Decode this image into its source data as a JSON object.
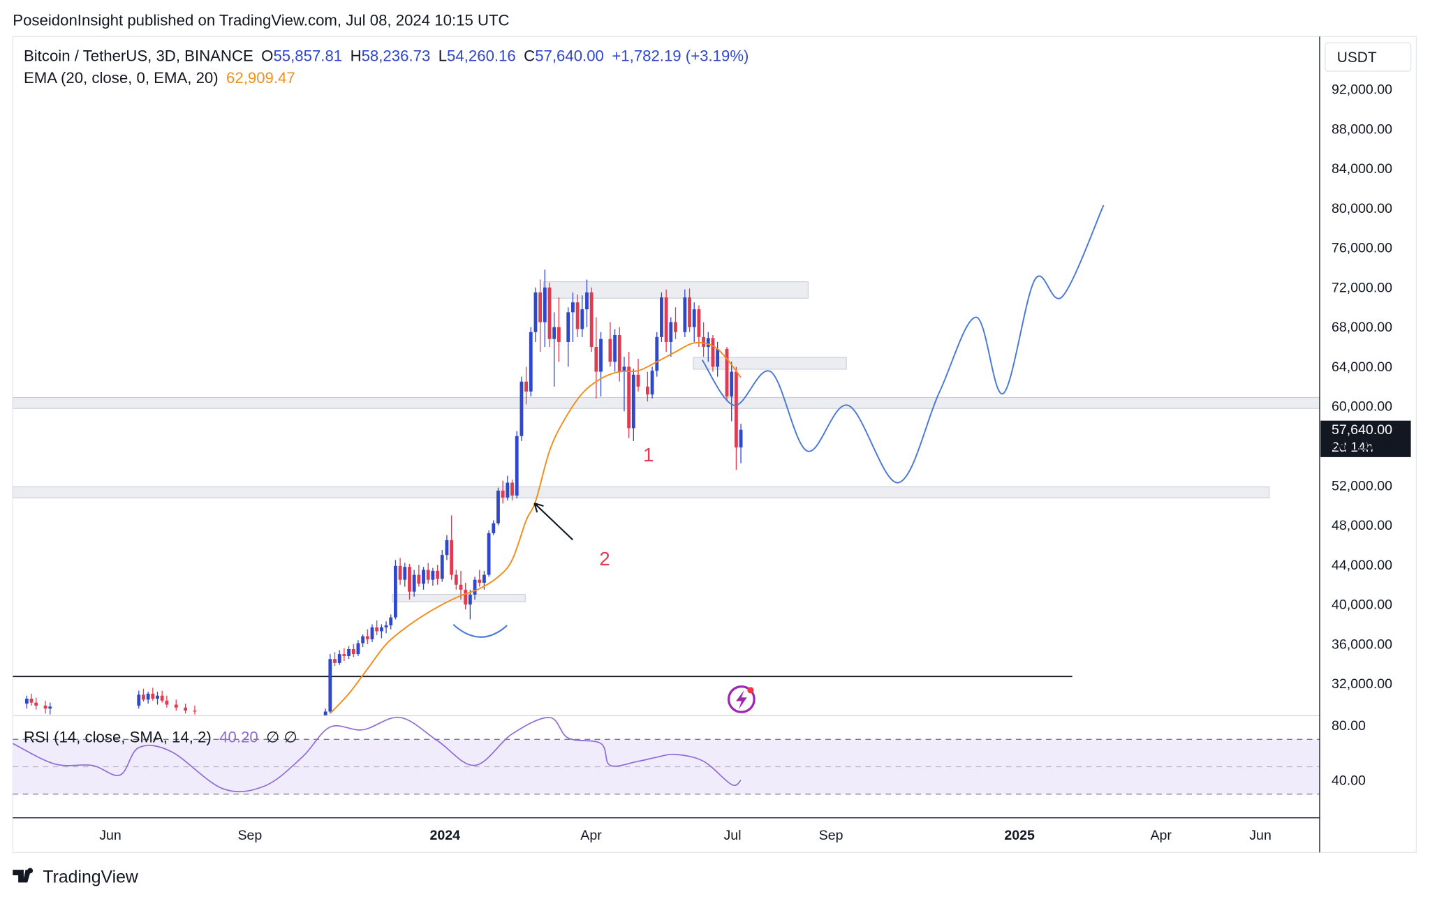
{
  "header": "PoseidonInsight published on TradingView.com, Jul 08, 2024 10:15 UTC",
  "footer": "TradingView",
  "chart_data": {
    "type": "candlestick",
    "currency": "USDT",
    "legend": {
      "symbol": "Bitcoin / TetherUS, 3D, BINANCE",
      "ohlc": [
        {
          "key": "O",
          "label": "55,857.81"
        },
        {
          "key": "H",
          "label": "58,236.73"
        },
        {
          "key": "L",
          "label": "54,260.16"
        },
        {
          "key": "C",
          "label": "57,640.00"
        }
      ],
      "change": "+1,782.19 (+3.19%)"
    },
    "ema_legend": {
      "name": "EMA (20, close, 0, EMA, 20)",
      "value": "62,909.47"
    },
    "last_price_label": "57,640.00",
    "countdown": "2d 14h",
    "up_color": "#2f47c9",
    "down_color": "#e23a50",
    "xlim": [
      0,
      280
    ],
    "xticks": [
      {
        "value": 20.9,
        "label": "Jun"
      },
      {
        "value": 50.8,
        "label": "Sep"
      },
      {
        "value": 92.6,
        "label": "2024"
      },
      {
        "value": 123.9,
        "label": "Apr"
      },
      {
        "value": 154.2,
        "label": "Jul"
      },
      {
        "value": 175.3,
        "label": "Sep"
      },
      {
        "value": 215.7,
        "label": "2025"
      },
      {
        "value": 246,
        "label": "Apr"
      },
      {
        "value": 267.3,
        "label": "Jun"
      }
    ],
    "ylim": [
      28780,
      97330
    ],
    "yticks": [
      {
        "value": 32000,
        "label": "32,000.00"
      },
      {
        "value": 36000,
        "label": "36,000.00"
      },
      {
        "value": 40000,
        "label": "40,000.00"
      },
      {
        "value": 44000,
        "label": "44,000.00"
      },
      {
        "value": 48000,
        "label": "48,000.00"
      },
      {
        "value": 52000,
        "label": "52,000.00"
      },
      {
        "value": 56000,
        "label": "56,000.00"
      },
      {
        "value": 60000,
        "label": "60,000.00"
      },
      {
        "value": 64000,
        "label": "64,000.00"
      },
      {
        "value": 68000,
        "label": "68,000.00"
      },
      {
        "value": 72000,
        "label": "72,000.00"
      },
      {
        "value": 76000,
        "label": "76,000.00"
      },
      {
        "value": 80000,
        "label": "80,000.00"
      },
      {
        "value": 84000,
        "label": "84,000.00"
      },
      {
        "value": 88000,
        "label": "88,000.00"
      },
      {
        "value": 92000,
        "label": "92,000.00"
      }
    ],
    "x": [
      3,
      4,
      5,
      7,
      8,
      27,
      28,
      29,
      30,
      31,
      32,
      33,
      35,
      37,
      39,
      67,
      68,
      69,
      70,
      71,
      72,
      73,
      74,
      75,
      76,
      77,
      78,
      79,
      80,
      81,
      82,
      83,
      84,
      85,
      86,
      87,
      88,
      89,
      90,
      91,
      92,
      93,
      94,
      95,
      96,
      97,
      98,
      99,
      100,
      101,
      102,
      103,
      104,
      105,
      106,
      107,
      108,
      109,
      110,
      111,
      112,
      113,
      114,
      115,
      116,
      117,
      119,
      120,
      121,
      122,
      123,
      124,
      125,
      126,
      128,
      129,
      130,
      131,
      132,
      133,
      134,
      136,
      137,
      138,
      139,
      140,
      141,
      142,
      144,
      145,
      146,
      147,
      148,
      149,
      150,
      151,
      153,
      154,
      155,
      156
    ],
    "open": [
      30000,
      30500,
      30100,
      29800,
      29500,
      29800,
      30900,
      30400,
      31000,
      30500,
      30800,
      30300,
      29900,
      29600,
      29300,
      28000,
      29200,
      34500,
      34100,
      35000,
      34800,
      35500,
      35000,
      36100,
      36800,
      36500,
      37700,
      37300,
      37700,
      37900,
      38700,
      43900,
      42500,
      43800,
      41300,
      43000,
      42100,
      43500,
      42500,
      43400,
      42600,
      45000,
      46500,
      43000,
      42000,
      41500,
      40000,
      41000,
      42500,
      42200,
      43000,
      47200,
      48200,
      51500,
      50800,
      52300,
      51000,
      57000,
      62500,
      61500,
      67500,
      71500,
      68500,
      72000,
      66800,
      68000,
      66500,
      69500,
      70500,
      67800,
      69800,
      71500,
      66000,
      63500,
      66800,
      64500,
      67200,
      63500,
      64000,
      57800,
      63200,
      62000,
      61200,
      63600,
      67000,
      71000,
      66500,
      68500,
      67500,
      71000,
      68000,
      69800,
      67000,
      66000,
      66900,
      64000,
      65800,
      61000,
      63500,
      55857.81
    ],
    "high": [
      30800,
      31000,
      30600,
      30300,
      30100,
      31300,
      31500,
      31200,
      31600,
      31200,
      31300,
      30800,
      30400,
      30000,
      29800,
      29500,
      35000,
      35200,
      35400,
      35600,
      35800,
      36000,
      36400,
      37000,
      37500,
      38000,
      38400,
      38000,
      38300,
      39000,
      44500,
      44700,
      44200,
      44100,
      43500,
      44000,
      43800,
      44200,
      43700,
      44000,
      45500,
      47000,
      49000,
      43500,
      43400,
      42200,
      41500,
      42800,
      43500,
      43400,
      47500,
      48500,
      51800,
      52500,
      53000,
      52600,
      57500,
      63000,
      64000,
      68000,
      72000,
      72800,
      73800,
      72500,
      69500,
      71000,
      70000,
      71500,
      71300,
      71200,
      72800,
      72000,
      69000,
      67500,
      68500,
      67800,
      68000,
      65000,
      65500,
      63800,
      64800,
      63500,
      64000,
      67500,
      71500,
      71800,
      69000,
      70000,
      71800,
      71900,
      70500,
      70200,
      68500,
      67500,
      67200,
      66500,
      66000,
      64500,
      64000,
      58236.73
    ],
    "low": [
      29500,
      29800,
      29400,
      29000,
      28900,
      29500,
      30200,
      30000,
      30300,
      29900,
      30100,
      29600,
      29300,
      29000,
      28900,
      27800,
      29000,
      33800,
      33900,
      34300,
      34500,
      34700,
      34800,
      35700,
      36000,
      36200,
      36900,
      36600,
      37100,
      37500,
      38500,
      42000,
      41800,
      40500,
      40800,
      41800,
      41500,
      42100,
      41900,
      42000,
      42300,
      44500,
      42500,
      41500,
      40500,
      39500,
      38500,
      40500,
      41800,
      41500,
      42800,
      47000,
      48000,
      50200,
      50500,
      50500,
      50700,
      56500,
      60200,
      61000,
      66500,
      65500,
      66000,
      66000,
      62000,
      64500,
      64000,
      66500,
      67000,
      67000,
      68000,
      65500,
      60800,
      61000,
      64000,
      63500,
      62500,
      59500,
      56800,
      56500,
      61500,
      60500,
      60800,
      63000,
      66500,
      65500,
      65000,
      66800,
      67000,
      67500,
      66500,
      66000,
      65000,
      64500,
      63500,
      63000,
      60500,
      58500,
      53600,
      54260.16
    ],
    "close": [
      30500,
      30100,
      29800,
      29500,
      29700,
      30900,
      30400,
      31000,
      30500,
      30800,
      30300,
      29900,
      29600,
      29300,
      29200,
      29200,
      34500,
      34100,
      35000,
      34800,
      35500,
      35000,
      36100,
      36800,
      36500,
      37700,
      37300,
      37700,
      37900,
      38700,
      43900,
      42500,
      43800,
      41300,
      43000,
      42100,
      43500,
      42500,
      43400,
      42600,
      45000,
      46500,
      43000,
      42000,
      41500,
      40000,
      41000,
      42500,
      42200,
      43000,
      47200,
      48200,
      51500,
      50800,
      52300,
      51000,
      57000,
      62500,
      61500,
      67500,
      71500,
      68500,
      72000,
      66800,
      68000,
      66500,
      69500,
      70500,
      67800,
      69800,
      71500,
      66000,
      63500,
      66800,
      64500,
      67200,
      63500,
      64000,
      57800,
      63200,
      62000,
      61200,
      63600,
      67000,
      71000,
      66500,
      68500,
      67500,
      71000,
      68000,
      69800,
      67000,
      66000,
      66900,
      64000,
      65800,
      61000,
      63500,
      55857.81,
      57640
    ],
    "series": [
      {
        "name": "EMA (20, close, 0, EMA, 20)",
        "color": "#ef8f1e",
        "x": [
          68,
          72,
          76,
          80,
          84,
          88,
          92,
          96,
          100,
          104,
          107,
          110,
          112,
          115,
          118,
          122,
          126,
          130,
          134,
          138,
          142,
          146,
          150,
          153,
          156
        ],
        "values": [
          29000,
          31000,
          33500,
          36000,
          37600,
          38900,
          40000,
          40900,
          41600,
          42800,
          44500,
          48500,
          50400,
          55500,
          58500,
          61300,
          62800,
          63500,
          63600,
          64500,
          65500,
          66400,
          66100,
          64800,
          62909.47
        ]
      },
      {
        "name": "projection",
        "color": "#4a78d6",
        "x": [
          147.7,
          154.6,
          162.4,
          170.2,
          179,
          189.7,
          198.5,
          206.4,
          212.2,
          219,
          224.9,
          233.7
        ],
        "values": [
          64700,
          60100,
          63500,
          55500,
          60100,
          52300,
          61400,
          69000,
          61300,
          72800,
          71100,
          80300
        ]
      }
    ],
    "zones": [
      {
        "x": [
          113.7,
          170.4
        ],
        "y": [
          70920,
          72580
        ]
      },
      {
        "x": [
          145.8,
          178.6
        ],
        "y": [
          63750,
          64940
        ]
      },
      {
        "x": [
          0,
          280
        ],
        "y": [
          59790,
          60900
        ]
      },
      {
        "x": [
          0,
          269.2
        ],
        "y": [
          50770,
          51880
        ]
      },
      {
        "x": [
          81.3,
          109.8
        ],
        "y": [
          40280,
          41020
        ]
      }
    ],
    "levels": [
      {
        "x": [
          0,
          227
        ],
        "y": 32740
      }
    ],
    "annotations": [
      "1",
      "2"
    ],
    "rsi": {
      "name": "RSI (14, close, SMA, 14, 2)",
      "value": "40.20",
      "extra": "∅ ∅",
      "color": "#8e6bd4",
      "ylim": [
        12.7,
        87.3
      ],
      "yticks": [
        {
          "value": 80,
          "label": "80.00"
        },
        {
          "value": 40,
          "label": "40.00"
        }
      ],
      "levels": [
        70,
        50,
        30
      ],
      "x": [
        0,
        9,
        17,
        23,
        27,
        34,
        45,
        54,
        62,
        68,
        75,
        83,
        91,
        99,
        107,
        115,
        119,
        126,
        128,
        134,
        138,
        142,
        148,
        154,
        156
      ],
      "values": [
        67,
        52,
        51,
        44,
        64,
        61,
        34,
        36,
        57,
        79,
        77,
        86,
        69,
        51,
        74,
        86,
        71,
        67,
        51,
        54,
        57,
        59,
        54,
        37,
        40.2
      ]
    }
  }
}
